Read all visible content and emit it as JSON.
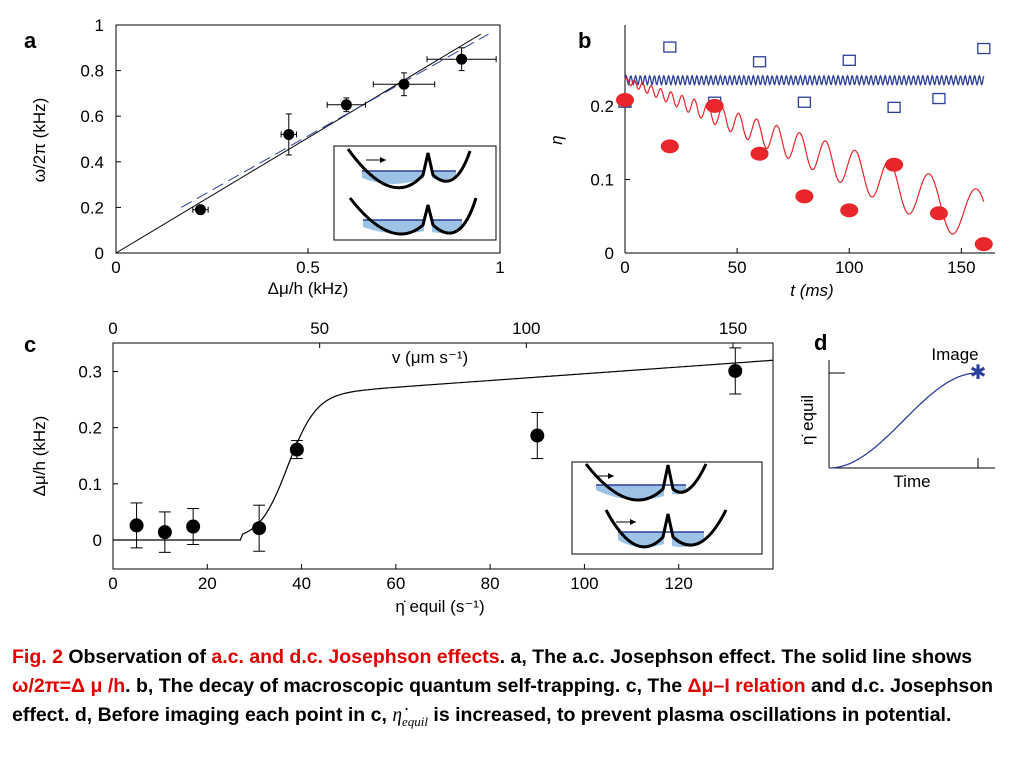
{
  "chart_data": [
    {
      "id": "a",
      "type": "scatter",
      "panel_label": "a",
      "xlabel": "Δμ/h (kHz)",
      "ylabel": "ω/2π (kHz)",
      "xlim": [
        0,
        1
      ],
      "ylim": [
        0,
        1
      ],
      "xticks": [
        "0",
        "0.5",
        "1"
      ],
      "yticks": [
        "0",
        "0.2",
        "0.4",
        "0.6",
        "0.8",
        "1"
      ],
      "series": [
        {
          "kind": "points",
          "x": [
            0.22,
            0.45,
            0.6,
            0.75,
            0.9
          ],
          "y": [
            0.19,
            0.52,
            0.65,
            0.74,
            0.85
          ],
          "xerr": [
            0.02,
            0.02,
            0.05,
            0.08,
            0.09
          ],
          "yerr": [
            0.0,
            0.09,
            0.03,
            0.05,
            0.05
          ]
        },
        {
          "kind": "solid-line",
          "x": [
            0,
            0.95
          ],
          "y": [
            0,
            0.96
          ]
        },
        {
          "kind": "dashed-line",
          "x": [
            0.17,
            0.97
          ],
          "y": [
            0.2,
            0.96
          ]
        }
      ]
    },
    {
      "id": "b",
      "type": "scatter",
      "panel_label": "b",
      "xlabel": "t (ms)",
      "ylabel": "η",
      "xlim": [
        0,
        165
      ],
      "ylim": [
        0,
        0.31
      ],
      "xticks": [
        "0",
        "50",
        "100",
        "150"
      ],
      "yticks": [
        "0",
        "0.1",
        "0.2"
      ],
      "series": [
        {
          "kind": "open-squares",
          "color": "#2c3e9a",
          "x": [
            0,
            20,
            40,
            60,
            80,
            100,
            120,
            140,
            160
          ],
          "y": [
            0.205,
            0.28,
            0.205,
            0.26,
            0.205,
            0.262,
            0.198,
            0.21,
            0.278
          ]
        },
        {
          "kind": "filled-circles",
          "color": "#e8262b",
          "x": [
            0,
            20,
            40,
            60,
            80,
            100,
            120,
            140,
            160
          ],
          "y": [
            0.208,
            0.145,
            0.2,
            0.135,
            0.077,
            0.058,
            0.12,
            0.054,
            0.012
          ]
        },
        {
          "kind": "oscillation-blue",
          "color": "#2c3e9a",
          "mean": 0.235,
          "amplitude": 0.006
        },
        {
          "kind": "oscillation-red",
          "color": "#e8262b",
          "start": 0.235,
          "end": 0.045
        }
      ]
    },
    {
      "id": "c",
      "type": "scatter",
      "panel_label": "c",
      "xlabel": "η̇ equil (s⁻¹)",
      "ylabel": "Δμ/h (kHz)",
      "top_axis_label": "v (μm s⁻¹)",
      "xlim": [
        0,
        140
      ],
      "ylim": [
        -0.05,
        0.35
      ],
      "xticks": [
        "0",
        "20",
        "40",
        "60",
        "80",
        "100",
        "120"
      ],
      "top_xticks": [
        "0",
        "50",
        "100",
        "150"
      ],
      "yticks": [
        "0",
        "0.1",
        "0.2",
        "0.3"
      ],
      "series": [
        {
          "kind": "points",
          "x": [
            5,
            11,
            17,
            31,
            39,
            90,
            132
          ],
          "y": [
            0.026,
            0.014,
            0.024,
            0.021,
            0.161,
            0.186,
            0.301
          ],
          "yerr": [
            0.04,
            0.036,
            0.032,
            0.041,
            0.016,
            0.041,
            0.041
          ]
        },
        {
          "kind": "solid-curve"
        },
        {
          "kind": "dashed-curve"
        }
      ]
    },
    {
      "id": "d",
      "type": "line",
      "panel_label": "d",
      "xlabel": "Time",
      "ylabel": "η̇ equil",
      "annotation": "Image",
      "series": [
        {
          "kind": "sigmoid",
          "color": "#2c3e9a"
        }
      ]
    }
  ],
  "caption": {
    "fig": "Fig. 2",
    "part1": " Observation of ",
    "hl1": "a.c. and d.c. Josephson effects",
    "part2": ". a, The a.c. Josephson effect. The solid line shows ",
    "hl2": "ω/2π=Δ μ /h",
    "part3": ". b, The decay of macroscopic quantum self-trapping. c, The ",
    "hl3": "Δμ–I relation",
    "part4": " and d.c. Josephson effect. d, Before imaging each point in c, ",
    "sym": "η̇",
    "sym_sub": "equil",
    "part5": " is increased, to prevent plasma oscillations in potential."
  },
  "colors": {
    "highlight": "#e00000",
    "blue": "#2c3e9a",
    "red": "#e8262b",
    "well_fill": "#9cc3e6"
  }
}
